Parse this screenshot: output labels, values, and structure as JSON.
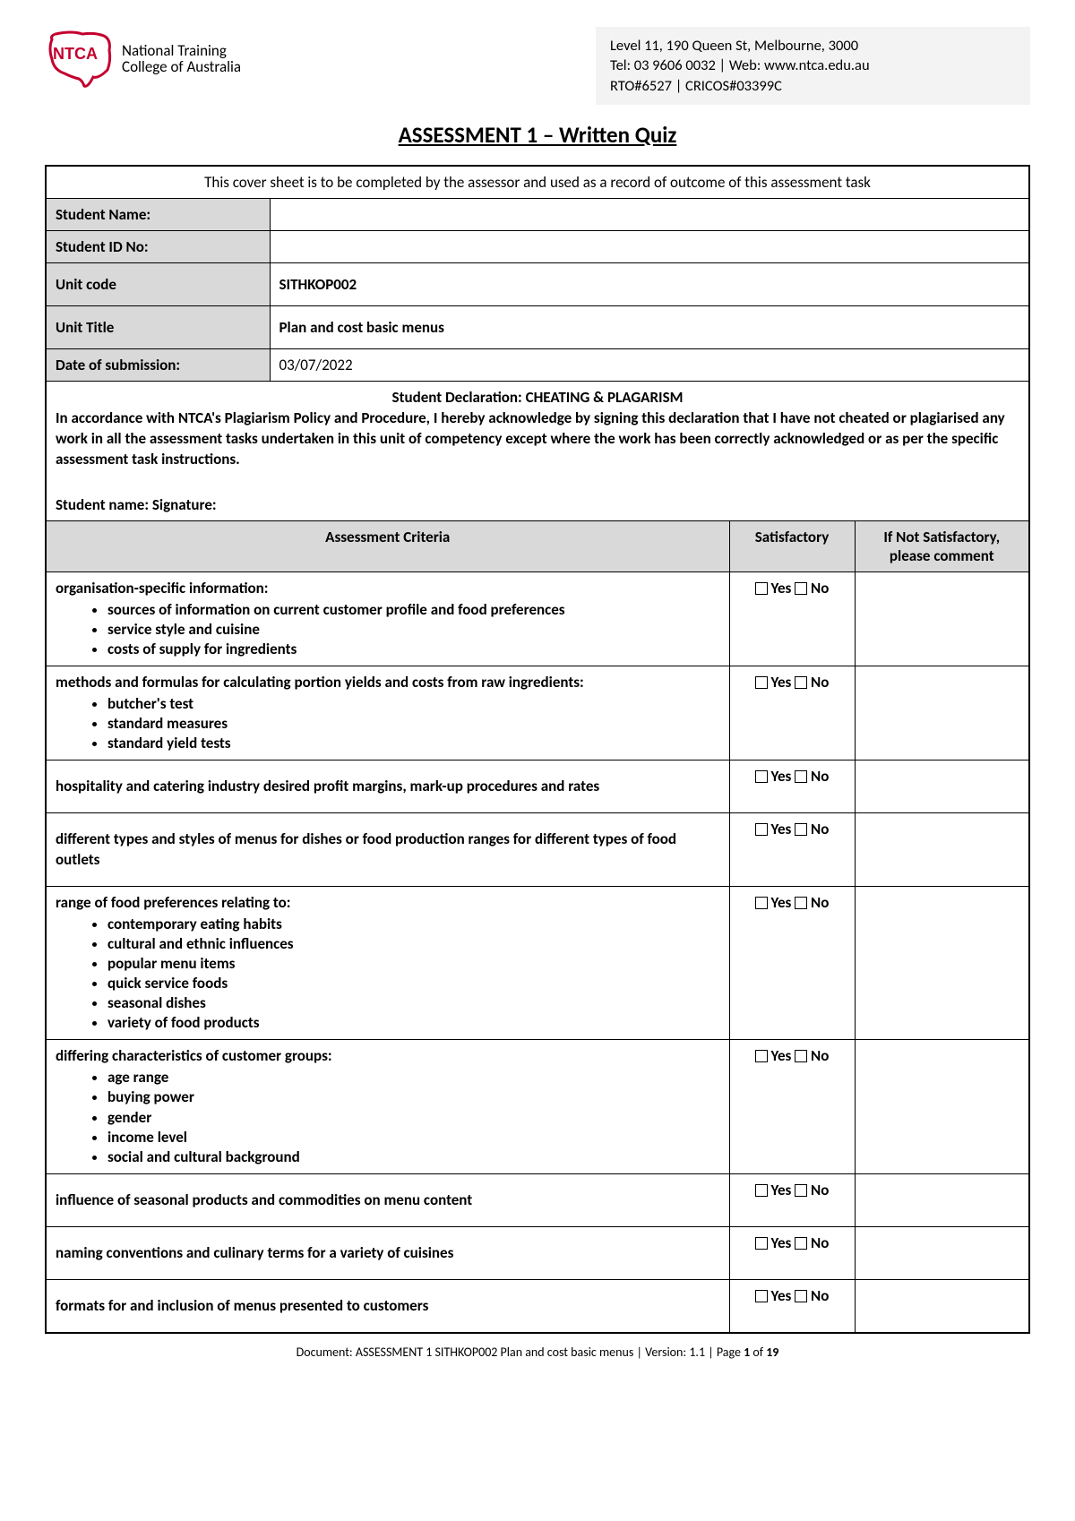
{
  "header": {
    "org_name_line1": "National Training",
    "org_name_line2": "College of Australia",
    "logo_abbrev": "NTCA",
    "contact_line1": "Level 11, 190 Queen St, Melbourne, 3000",
    "contact_line2": "Tel: 03 9606 0032 | Web: www.ntca.edu.au",
    "contact_line3": "RTO#6527 | CRICOS#03399C"
  },
  "title": "ASSESSMENT 1 – Written Quiz",
  "intro": "This cover sheet is to be completed by the assessor and used as a record of outcome of this assessment task",
  "fields": {
    "student_name_label": "Student Name:",
    "student_name_value": "",
    "student_id_label": "Student ID No:",
    "student_id_value": "",
    "unit_code_label": "Unit code",
    "unit_code_value": "SITHKOP002",
    "unit_title_label": "Unit Title",
    "unit_title_value": "Plan and cost basic menus",
    "date_label": "Date of submission:",
    "date_value": "03/07/2022"
  },
  "declaration": {
    "title": "Student Declaration: CHEATING & PLAGARISM",
    "body": "In accordance with NTCA's Plagiarism Policy and Procedure, I hereby acknowledge by signing this declaration that I have not cheated or plagiarised any work in all the assessment tasks undertaken in this unit of competency except where the work has been correctly acknowledged or as per the specific assessment task instructions.",
    "sig_line": "Student name:  Signature:"
  },
  "criteria_headers": {
    "col1": "Assessment Criteria",
    "col2": "Satisfactory",
    "col3": "If Not Satisfactory, please comment"
  },
  "yn": {
    "yes": "Yes",
    "no": "No"
  },
  "criteria": [
    {
      "lead": "organisation-specific information:",
      "bullets": [
        "sources of information on current customer profile and food preferences",
        "service style and cuisine",
        "costs of supply for ingredients"
      ]
    },
    {
      "lead": "methods and formulas for calculating portion yields and costs from raw ingredients:",
      "bullets": [
        "butcher's test",
        "standard measures",
        "standard yield tests"
      ]
    },
    {
      "lead": "hospitality and catering industry desired profit margins, mark-up procedures and rates",
      "bullets": []
    },
    {
      "lead": "different types and styles of menus for dishes or food production ranges for different types of food outlets",
      "bullets": []
    },
    {
      "lead": "range of food preferences relating to:",
      "bullets": [
        "contemporary eating habits",
        "cultural and ethnic influences",
        "popular menu items",
        "quick service foods",
        "seasonal dishes",
        "variety of food products"
      ]
    },
    {
      "lead": "differing characteristics of customer groups:",
      "bullets": [
        "age range",
        "buying power",
        "gender",
        "income level",
        "social and cultural background"
      ]
    },
    {
      "lead": "influence of seasonal products and commodities on menu content",
      "bullets": []
    },
    {
      "lead": "naming conventions and culinary terms for a variety of cuisines",
      "bullets": []
    },
    {
      "lead": "formats for and inclusion of menus presented to customers",
      "bullets": []
    }
  ],
  "footer": {
    "doc_label": "Document:",
    "doc_name": "ASSESSMENT 1 SITHKOP002 Plan and cost basic menus",
    "version_label": "Version:",
    "version_value": "1.1",
    "page_label": "Page",
    "page_current": "1",
    "page_of": "of",
    "page_total": "19"
  },
  "colors": {
    "header_bg": "#d9d9d9",
    "contact_bg": "#f3f3f3",
    "logo_outline": "#c3002f",
    "text": "#000000"
  }
}
